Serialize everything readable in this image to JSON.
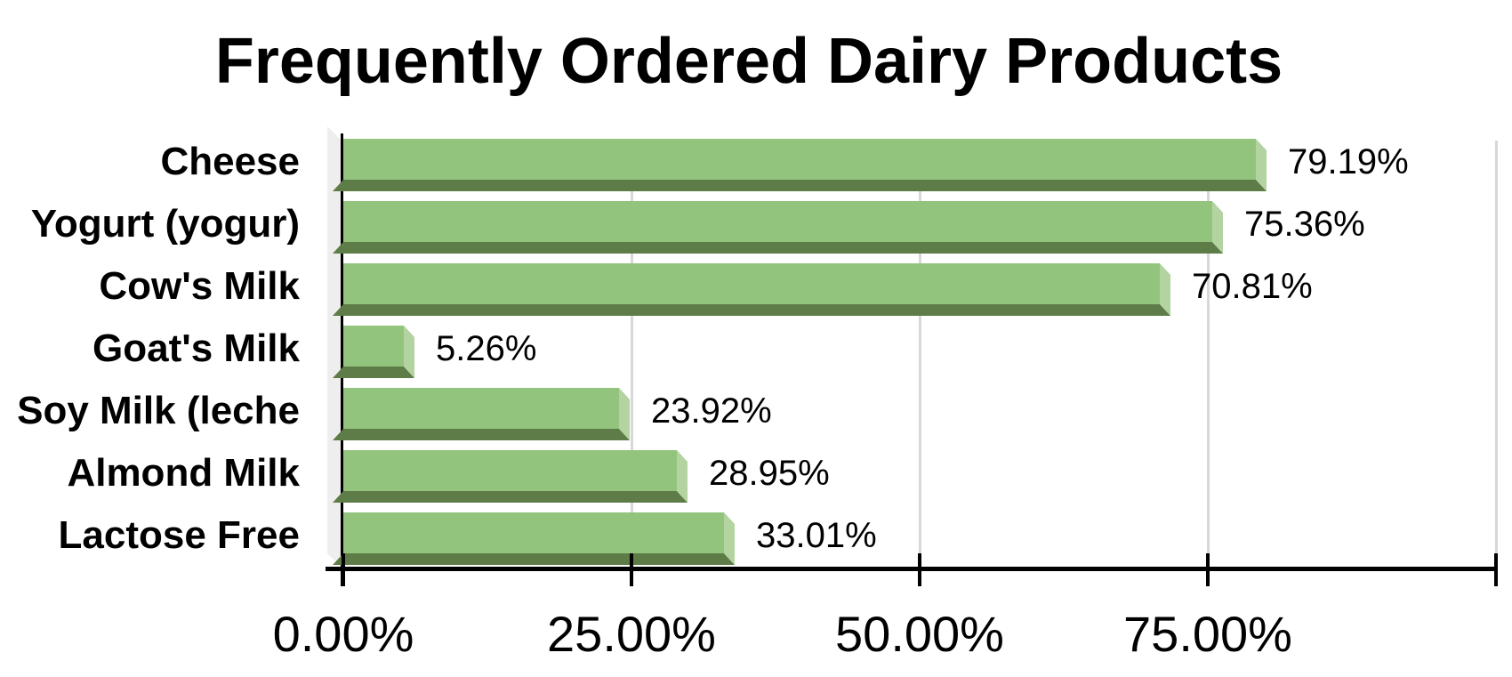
{
  "chart_data": {
    "type": "bar",
    "orientation": "horizontal",
    "style": "3d-bevel",
    "title": "Frequently Ordered Dairy Products",
    "categories": [
      "Cheese",
      "Yogurt (yogur)",
      "Cow's Milk",
      "Goat's Milk",
      "Soy Milk (leche",
      "Almond Milk",
      "Lactose Free"
    ],
    "values": [
      79.19,
      75.36,
      70.81,
      5.26,
      23.92,
      28.95,
      33.01
    ],
    "value_labels": [
      "79.19%",
      "75.36%",
      "70.81%",
      "5.26%",
      "23.92%",
      "28.95%",
      "33.01%"
    ],
    "x_ticks_percent": [
      0,
      25,
      50,
      75,
      100
    ],
    "x_tick_labels": [
      "0.00%",
      "25.00%",
      "50.00%",
      "75.00%"
    ],
    "xlim": [
      0,
      100
    ],
    "grid": true,
    "legend": "none",
    "colors": {
      "bar_face": "#93c47d",
      "bar_side_highlight": "#b3d4a0",
      "bar_bottom_shadow": "#5d7c48",
      "wall": "#eeeeee",
      "gridline": "#d8d8d8",
      "axis": "#000000",
      "text": "#000000",
      "background": "#ffffff"
    }
  }
}
